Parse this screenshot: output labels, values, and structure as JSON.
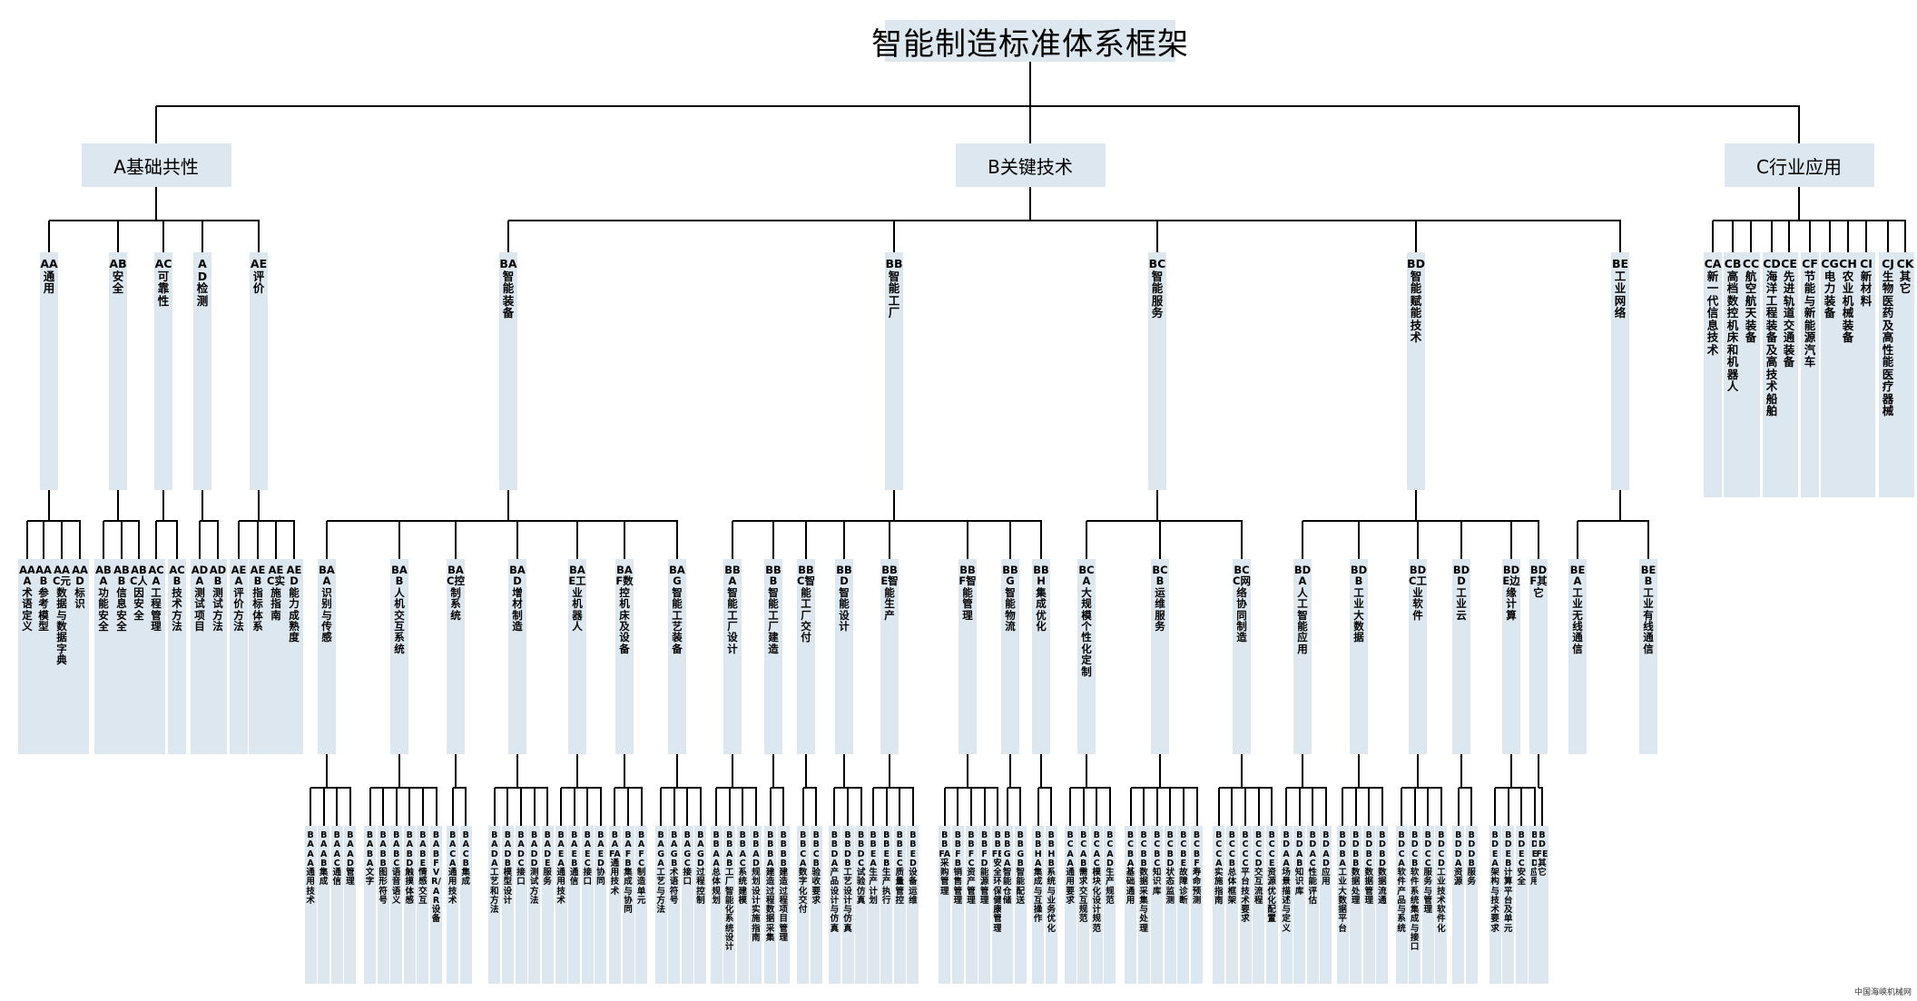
{
  "title": "智能制造标准体系框架",
  "credit": "中国海峡机械网",
  "tree": {
    "label": "智能制造标准体系框架",
    "children": [
      {
        "label": "A基础共性",
        "children": [
          {
            "label": "AA通用",
            "children": [
              {
                "label": "AAA术语定义"
              },
              {
                "label": "AAB参考模型"
              },
              {
                "label": "AAC元数据与数据字典"
              },
              {
                "label": "AAD标识"
              }
            ]
          },
          {
            "label": "AB安全",
            "children": [
              {
                "label": "ABA功能安全"
              },
              {
                "label": "ABB信息安全"
              },
              {
                "label": "ABC人因安全"
              }
            ]
          },
          {
            "label": "AC可靠性",
            "children": [
              {
                "label": "ACA工程管理"
              },
              {
                "label": "ACB技术方法"
              }
            ]
          },
          {
            "label": "AD检测",
            "children": [
              {
                "label": "ADA测试项目"
              },
              {
                "label": "ADB测试方法"
              }
            ]
          },
          {
            "label": "AE评价",
            "children": [
              {
                "label": "AEA评价方法"
              },
              {
                "label": "AEB指标体系"
              },
              {
                "label": "AEC实施指南"
              },
              {
                "label": "AED能力成熟度"
              }
            ]
          }
        ]
      },
      {
        "label": "B关键技术",
        "children": [
          {
            "label": "BA智能装备",
            "children": [
              {
                "label": "BAA识别与传感",
                "children": [
                  {
                    "label": "BAAA通用技术"
                  },
                  {
                    "label": "BAAB集成"
                  },
                  {
                    "label": "BAAC通信"
                  },
                  {
                    "label": "BAAD管理"
                  }
                ]
              },
              {
                "label": "BAB人机交互系统",
                "children": [
                  {
                    "label": "BABA文字"
                  },
                  {
                    "label": "BABB图形符号"
                  },
                  {
                    "label": "BABC语音语义"
                  },
                  {
                    "label": "BABD触摸体感"
                  },
                  {
                    "label": "BABE情感交互"
                  },
                  {
                    "label": "BABF VR/AR设备"
                  }
                ]
              },
              {
                "label": "BAC控制系统",
                "children": [
                  {
                    "label": "BACA通用技术"
                  },
                  {
                    "label": "BACB集成"
                  }
                ]
              },
              {
                "label": "BAD增材制造",
                "children": [
                  {
                    "label": "BADA工艺和方法"
                  },
                  {
                    "label": "BADB模型设计"
                  },
                  {
                    "label": "BADC接口"
                  },
                  {
                    "label": "BADD测试方法"
                  },
                  {
                    "label": "BADE服务"
                  }
                ]
              },
              {
                "label": "BAE工业机器人",
                "children": [
                  {
                    "label": "BAEA通用技术"
                  },
                  {
                    "label": "BAEB通信"
                  },
                  {
                    "label": "BAEC接口"
                  },
                  {
                    "label": "BAED协同"
                  }
                ]
              },
              {
                "label": "BAF数控机床及设备",
                "children": [
                  {
                    "label": "BAFA通用技术"
                  },
                  {
                    "label": "BAFB集成与协同"
                  },
                  {
                    "label": "BAFC制造单元"
                  }
                ]
              },
              {
                "label": "BAG智能工艺装备",
                "children": [
                  {
                    "label": "BAGA工艺与方法"
                  },
                  {
                    "label": "BAGB术语符号"
                  },
                  {
                    "label": "BAGC接口"
                  },
                  {
                    "label": "BAGD过程控制"
                  }
                ]
              }
            ]
          },
          {
            "label": "BB智能工厂",
            "children": [
              {
                "label": "BBA智能工厂设计",
                "children": [
                  {
                    "label": "BBAA总体规划"
                  },
                  {
                    "label": "BBAB工厂智能化系统设计"
                  },
                  {
                    "label": "BBAC系统建模"
                  },
                  {
                    "label": "BBAD规划设计实施指南"
                  }
                ]
              },
              {
                "label": "BBB智能工厂建造",
                "children": [
                  {
                    "label": "BBBA建造过程数据采集"
                  },
                  {
                    "label": "BBBB建造过程项目管理"
                  }
                ]
              },
              {
                "label": "BBC智能工厂交付",
                "children": [
                  {
                    "label": "BBCA数字化交付"
                  },
                  {
                    "label": "BBCB验收要求"
                  }
                ]
              },
              {
                "label": "BBD智能设计",
                "children": [
                  {
                    "label": "BBDA产品设计与仿真"
                  },
                  {
                    "label": "BBDB工艺设计与仿真"
                  },
                  {
                    "label": "BBDC试验仿真"
                  }
                ]
              },
              {
                "label": "BBE智能生产",
                "children": [
                  {
                    "label": "BBEA生产计划"
                  },
                  {
                    "label": "BBEB生产执行"
                  },
                  {
                    "label": "BBEC质量管控"
                  },
                  {
                    "label": "BBED设备运维"
                  }
                ]
              },
              {
                "label": "BBF智能管理",
                "children": [
                  {
                    "label": "BBFA采购管理"
                  },
                  {
                    "label": "BBFB销售管理"
                  },
                  {
                    "label": "BBFC资产管理"
                  },
                  {
                    "label": "BBFD能源管理"
                  },
                  {
                    "label": "BBFE安全环保健康管理"
                  }
                ]
              },
              {
                "label": "BBG智能物流",
                "children": [
                  {
                    "label": "BBGA智能仓储"
                  },
                  {
                    "label": "BBGB智能配送"
                  }
                ]
              },
              {
                "label": "BBH集成优化",
                "children": [
                  {
                    "label": "BBHA集成与互操作"
                  },
                  {
                    "label": "BBHB系统与业务优化"
                  }
                ]
              }
            ]
          },
          {
            "label": "BC智能服务",
            "children": [
              {
                "label": "BCA大规模个性化定制",
                "children": [
                  {
                    "label": "BCAA通用要求"
                  },
                  {
                    "label": "BCAB需求交互规范"
                  },
                  {
                    "label": "BCAC模块化设计规范"
                  },
                  {
                    "label": "BCAD生产规范"
                  }
                ]
              },
              {
                "label": "BCB运维服务",
                "children": [
                  {
                    "label": "BCBA基础通用"
                  },
                  {
                    "label": "BCBB数据采集与处理"
                  },
                  {
                    "label": "BCBC知识库"
                  },
                  {
                    "label": "BCBD状态监测"
                  },
                  {
                    "label": "BCBE故障诊断"
                  },
                  {
                    "label": "BCBF寿命预测"
                  }
                ]
              },
              {
                "label": "BCC网络协同制造",
                "children": [
                  {
                    "label": "BCCA实施指南"
                  },
                  {
                    "label": "BCCB总体框架"
                  },
                  {
                    "label": "BCCC平台技术要求"
                  },
                  {
                    "label": "BCCD交互流程"
                  },
                  {
                    "label": "BCCE资源优化配置"
                  }
                ]
              }
            ]
          },
          {
            "label": "BD智能赋能技术",
            "children": [
              {
                "label": "BDA人工智能应用",
                "children": [
                  {
                    "label": "BDAA场景描述与定义"
                  },
                  {
                    "label": "BDAB知识库"
                  },
                  {
                    "label": "BDAC性能评估"
                  },
                  {
                    "label": "BDAD应用"
                  }
                ]
              },
              {
                "label": "BDB工业大数据",
                "children": [
                  {
                    "label": "BDBA工业大数据平台"
                  },
                  {
                    "label": "BDBB数据处理"
                  },
                  {
                    "label": "BDBC数据管理"
                  },
                  {
                    "label": "BDBD数据流通"
                  }
                ]
              },
              {
                "label": "BDC工业软件",
                "children": [
                  {
                    "label": "BDCA软件产品与系统"
                  },
                  {
                    "label": "BDCB软件系统集成与接口"
                  },
                  {
                    "label": "BDCC服务与管理"
                  },
                  {
                    "label": "BDCD工业技术软件化"
                  }
                ]
              },
              {
                "label": "BDD工业云",
                "children": [
                  {
                    "label": "BDDA资源"
                  },
                  {
                    "label": "BDDB服务"
                  }
                ]
              },
              {
                "label": "BDE边缘计算",
                "children": [
                  {
                    "label": "BDEA架构与技术要求"
                  },
                  {
                    "label": "BDEB计算平台及单元"
                  },
                  {
                    "label": "BDEC安全"
                  },
                  {
                    "label": "BDED应用"
                  }
                ]
              },
              {
                "label": "BDF其它",
                "children": [
                  {
                    "label": "BDFE其它"
                  }
                ]
              }
            ]
          },
          {
            "label": "BE工业网络",
            "children": [
              {
                "label": "BEA工业无线通信"
              },
              {
                "label": "BEB工业有线通信"
              }
            ]
          }
        ]
      },
      {
        "label": "C行业应用",
        "children": [
          {
            "label": "CA新一代信息技术"
          },
          {
            "label": "CB高档数控机床和机器人"
          },
          {
            "label": "CC航空航天装备"
          },
          {
            "label": "CD海洋工程装备及高技术船舶"
          },
          {
            "label": "CE先进轨道交通装备"
          },
          {
            "label": "CF节能与新能源汽车"
          },
          {
            "label": "CG电力装备"
          },
          {
            "label": "CH农业机械装备"
          },
          {
            "label": "CI新材料"
          },
          {
            "label": "CJ生物医药及高性能医疗器械"
          },
          {
            "label": "CK其它"
          }
        ]
      }
    ]
  }
}
